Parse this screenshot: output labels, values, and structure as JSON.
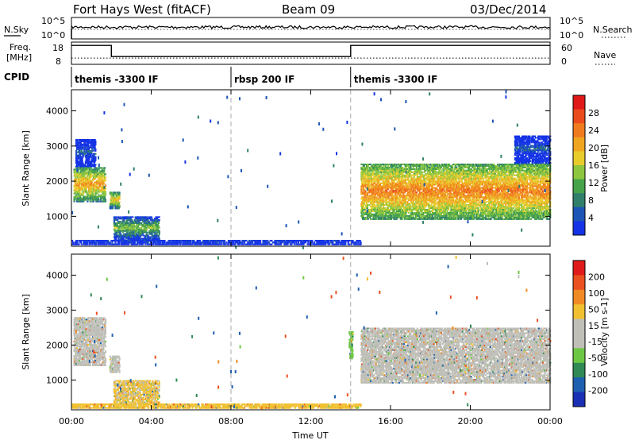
{
  "header": {
    "station": "Fort Hays West (fitACF)",
    "beam": "Beam 09",
    "date": "03/Dec/2014"
  },
  "top_panels": {
    "nsky_label": "N.Sky",
    "nsearch_label": "N.Search",
    "nsky_ticks": [
      "10^5",
      "10^0"
    ],
    "nsearch_ticks": [
      "10^5",
      "10^0"
    ],
    "freq_label_1": "Freq.",
    "freq_label_2": "[MHz]",
    "freq_ticks": [
      "18",
      "8"
    ],
    "nave_label": "Nave",
    "nave_ticks": [
      "60",
      "0"
    ],
    "cpid_label": "CPID",
    "cpid_segments": [
      {
        "label": "themis -3300 IF",
        "start_h": 0
      },
      {
        "label": "rbsp 200 IF",
        "start_h": 8
      },
      {
        "label": "themis -3300 IF",
        "start_h": 14
      }
    ],
    "freq_series": [
      {
        "start_h": 0,
        "end_h": 2,
        "value": 16.5
      },
      {
        "start_h": 2,
        "end_h": 14,
        "value": 11.5
      },
      {
        "start_h": 14,
        "end_h": 24,
        "value": 16.5
      }
    ],
    "nave_level": 17,
    "nsky_level": 0.55
  },
  "colorbars": {
    "power": {
      "label": "Power [dB]",
      "ticks": [
        "28",
        "24",
        "20",
        "16",
        "12",
        "8",
        "4"
      ],
      "colors": [
        "#1433e6",
        "#1c55b5",
        "#2f7f6b",
        "#46a34a",
        "#8ec63f",
        "#e8cc2c",
        "#f0a521",
        "#f07b1e",
        "#ea4a1c",
        "#e01818"
      ]
    },
    "velocity": {
      "label": "Velocity [m s-1]",
      "ticks": [
        "200",
        "100",
        "50",
        "15",
        "-15",
        "-50",
        "-100",
        "-200"
      ],
      "colors": [
        "#1a2fb3",
        "#1f5fb0",
        "#2f8a55",
        "#6cc844",
        "#bfbfb8",
        "#bfbfb8",
        "#f0c030",
        "#f08a24",
        "#ea5020",
        "#e01a1a"
      ]
    }
  },
  "chart_data": [
    {
      "type": "heatmap",
      "title": "",
      "quantity": "Power",
      "units": "dB",
      "xlabel": "Time UT",
      "ylabel": "Slant Range [km]",
      "xlim_hours": [
        0,
        24
      ],
      "ylim_km": [
        150,
        4600
      ],
      "x_ticks": [
        "00:00",
        "04:00",
        "08:00",
        "12:00",
        "16:00",
        "20:00",
        "00:00"
      ],
      "y_ticks": [
        1000,
        2000,
        3000,
        4000
      ],
      "colorbar_range_db": [
        0,
        32
      ],
      "mode_change_lines_h": [
        8,
        14
      ],
      "regions": [
        {
          "t_start": 0.1,
          "t_end": 1.7,
          "r_low": 1400,
          "r_high": 2400,
          "power_db": 22
        },
        {
          "t_start": 0.2,
          "t_end": 1.2,
          "r_low": 2400,
          "r_high": 3200,
          "power_db": 6
        },
        {
          "t_start": 1.9,
          "t_end": 2.4,
          "r_low": 1200,
          "r_high": 1700,
          "power_db": 20
        },
        {
          "t_start": 2.1,
          "t_end": 4.4,
          "r_low": 300,
          "r_high": 1000,
          "power_db": 14
        },
        {
          "t_start": 14.5,
          "t_end": 24.0,
          "r_low": 900,
          "r_high": 2500,
          "power_db": 24
        },
        {
          "t_start": 22.2,
          "t_end": 24.0,
          "r_low": 2500,
          "r_high": 3300,
          "power_db": 6
        },
        {
          "t_start": 0.0,
          "t_end": 14.5,
          "r_low": 180,
          "r_high": 330,
          "power_db": 6
        }
      ]
    },
    {
      "type": "heatmap",
      "title": "",
      "quantity": "Velocity",
      "units": "m s-1",
      "xlabel": "Time UT",
      "ylabel": "Slant Range [km]",
      "xlim_hours": [
        0,
        24
      ],
      "ylim_km": [
        150,
        4600
      ],
      "x_ticks": [
        "00:00",
        "04:00",
        "08:00",
        "12:00",
        "16:00",
        "20:00",
        "00:00"
      ],
      "y_ticks": [
        1000,
        2000,
        3000,
        4000
      ],
      "colorbar_range_ms": [
        -250,
        250
      ],
      "mode_change_lines_h": [
        8,
        14
      ],
      "regions": [
        {
          "t_start": 0.1,
          "t_end": 1.7,
          "r_low": 1400,
          "r_high": 2800,
          "velocity_ms": 0
        },
        {
          "t_start": 1.9,
          "t_end": 2.4,
          "r_low": 1200,
          "r_high": 1700,
          "velocity_ms": 0
        },
        {
          "t_start": 2.1,
          "t_end": 4.4,
          "r_low": 300,
          "r_high": 1000,
          "velocity_ms": -20
        },
        {
          "t_start": 14.5,
          "t_end": 24.0,
          "r_low": 900,
          "r_high": 2500,
          "velocity_ms": 0
        },
        {
          "t_start": 0.0,
          "t_end": 14.5,
          "r_low": 180,
          "r_high": 330,
          "velocity_ms": -30
        },
        {
          "t_start": 13.9,
          "t_end": 14.1,
          "r_low": 1600,
          "r_high": 2400,
          "velocity_ms": 40
        }
      ]
    }
  ]
}
